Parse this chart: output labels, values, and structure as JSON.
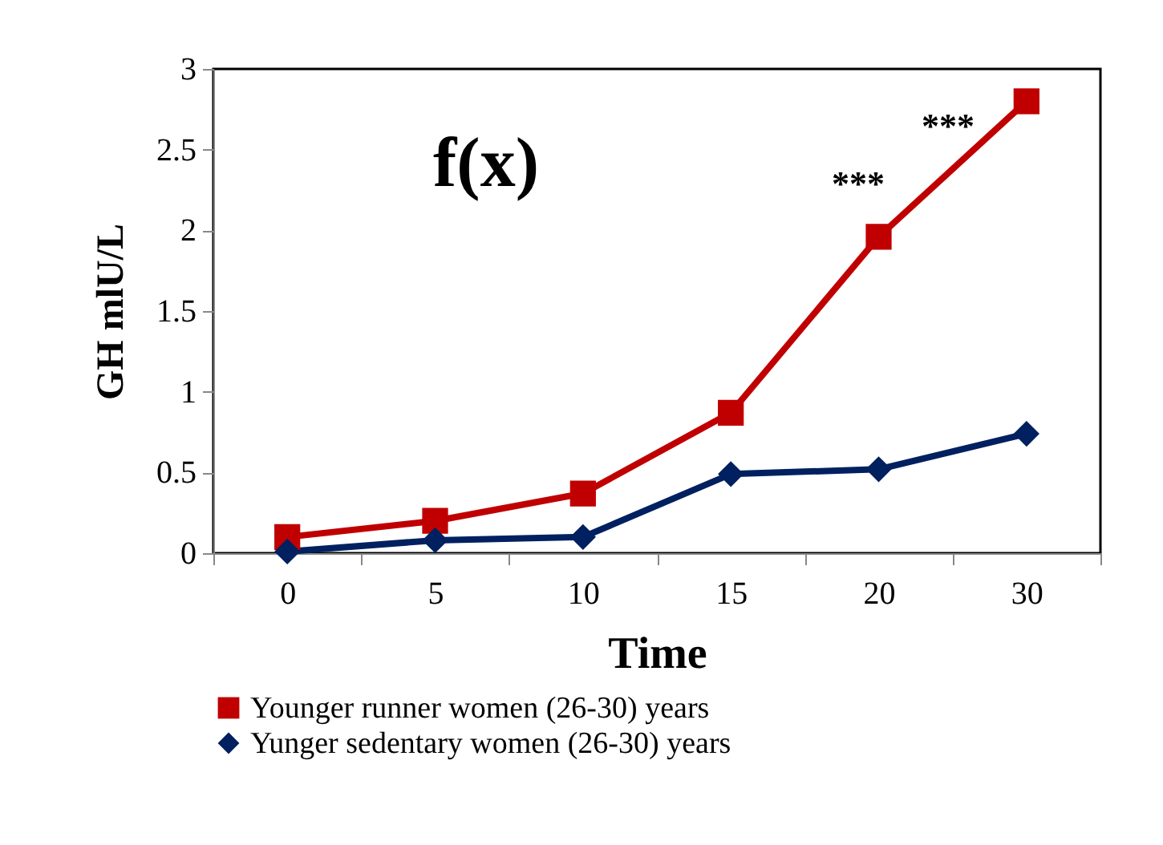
{
  "chart_data": {
    "type": "line",
    "xlabel": "Time",
    "ylabel": "GH mlU/L",
    "categories": [
      "0",
      "5",
      "10",
      "15",
      "20",
      "30"
    ],
    "series": [
      {
        "name": "Younger runner women (26-30) years",
        "color": "#c00000",
        "marker": "square",
        "values": [
          0.1,
          0.2,
          0.37,
          0.87,
          1.96,
          2.8
        ]
      },
      {
        "name": "Yunger sedentary women (26-30) years",
        "color": "#002060",
        "marker": "diamond",
        "values": [
          0.01,
          0.08,
          0.1,
          0.49,
          0.52,
          0.74
        ]
      }
    ],
    "ylim": [
      0,
      3
    ],
    "yticks": [
      0,
      0.5,
      1,
      1.5,
      2,
      2.5,
      3
    ],
    "grid": false,
    "legend": "bottom",
    "annotations": [
      "f(x)",
      "***",
      "***"
    ]
  }
}
